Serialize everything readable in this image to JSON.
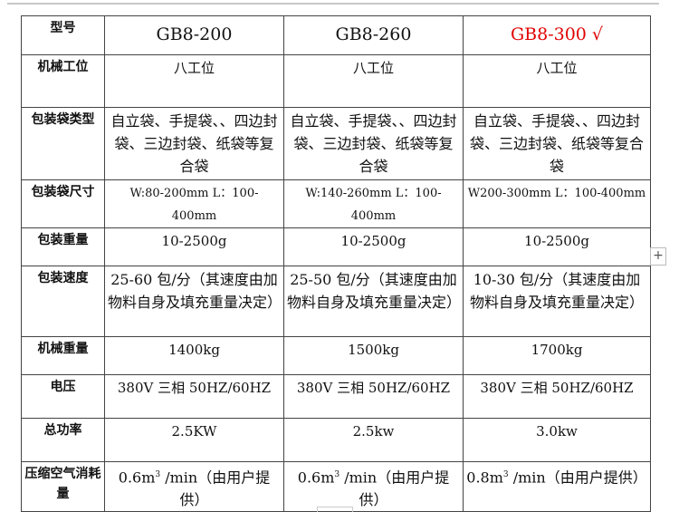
{
  "header": {
    "label": "型号",
    "models": [
      "GB8-200",
      "GB8-260",
      "GB8-300 √"
    ],
    "highlight_color": "#e00000"
  },
  "rows": [
    {
      "label": "机械工位",
      "values": [
        "八工位",
        "八工位",
        "八工位"
      ]
    },
    {
      "label": "包装袋类型",
      "values": [
        "自立袋、手提袋、、四边封袋、三边封袋、纸袋等复合袋",
        "自立袋、手提袋、、四边封袋、三边封袋、纸袋等复合袋",
        "自立袋、手提袋、、四边封袋、三边封袋、纸袋等复合袋"
      ]
    },
    {
      "label": "包装袋尺寸",
      "values": [
        "W:80-200mm L：100-400mm",
        "W:140-260mm L：100-400mm",
        "W200-300mm L：100-400mm"
      ]
    },
    {
      "label": "包装重量",
      "values": [
        "10-2500g",
        "10-2500g",
        "10-2500g"
      ]
    },
    {
      "label": "包装速度",
      "values": [
        "25-60 包/分（其速度由加物料自身及填充重量决定）",
        "25-50 包/分（其速度由加物料自身及填充重量决定）",
        "10-30 包/分（其速度由加物料自身及填充重量决定）"
      ]
    },
    {
      "label": "机械重量",
      "values": [
        "1400kg",
        "1500kg",
        "1700kg"
      ]
    },
    {
      "label": "电压",
      "values": [
        "380V 三相 50HZ/60HZ",
        "380V 三相 50HZ/60HZ",
        "380V 三相 50HZ/60HZ"
      ]
    },
    {
      "label": "总功率",
      "values": [
        "2.5KW",
        "2.5kw",
        "3.0kw"
      ]
    }
  ],
  "air": {
    "label": "压缩空气消耗量",
    "values": [
      "0.6m",
      "0.6m",
      "0.8m"
    ],
    "sup": "3",
    "suffix": " /min（由用户提供）"
  },
  "plus_button": "+"
}
